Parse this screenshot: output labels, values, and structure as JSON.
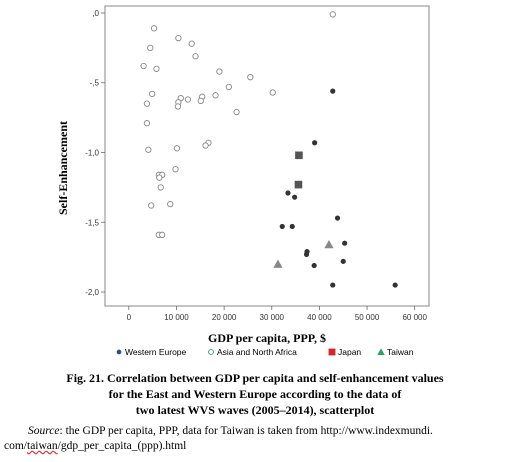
{
  "chart_data": {
    "type": "scatter",
    "xlabel": "GDP per capita, PPP, $",
    "ylabel": "Self-Enhancement",
    "xlim": [
      -5000,
      63000
    ],
    "ylim": [
      -2.1,
      0.05
    ],
    "x_ticks": [
      0,
      10000,
      20000,
      30000,
      40000,
      50000,
      60000
    ],
    "x_tick_labels": [
      "0",
      "10 000",
      "20 000",
      "30 000",
      "40 000",
      "50 000",
      "60 000"
    ],
    "y_ticks": [
      0,
      -0.5,
      -1,
      -1.5,
      -2
    ],
    "y_tick_labels": [
      ",0",
      "-,5",
      "-1,0",
      "-1,5",
      "-2,0"
    ],
    "grid": false,
    "legend_position": "bottom",
    "series": [
      {
        "name": "Western Europe",
        "marker": "circle-filled",
        "color": "#333333",
        "points": [
          [
            42800,
            -0.56
          ],
          [
            39000,
            -0.93
          ],
          [
            33400,
            -1.29
          ],
          [
            34800,
            -1.32
          ],
          [
            32200,
            -1.53
          ],
          [
            34300,
            -1.53
          ],
          [
            37400,
            -1.71
          ],
          [
            37300,
            -1.73
          ],
          [
            38900,
            -1.81
          ],
          [
            43800,
            -1.47
          ],
          [
            45300,
            -1.65
          ],
          [
            45000,
            -1.78
          ],
          [
            42800,
            -1.95
          ],
          [
            55900,
            -1.95
          ]
        ]
      },
      {
        "name": "Asia and North Africa",
        "marker": "circle-open",
        "color": "#888888",
        "points": [
          [
            42800,
            -0.01
          ],
          [
            5300,
            -0.11
          ],
          [
            10400,
            -0.18
          ],
          [
            13200,
            -0.22
          ],
          [
            4500,
            -0.25
          ],
          [
            14000,
            -0.31
          ],
          [
            3100,
            -0.38
          ],
          [
            5800,
            -0.4
          ],
          [
            19000,
            -0.42
          ],
          [
            25500,
            -0.46
          ],
          [
            21000,
            -0.53
          ],
          [
            18200,
            -0.59
          ],
          [
            30200,
            -0.57
          ],
          [
            4900,
            -0.58
          ],
          [
            15400,
            -0.6
          ],
          [
            12400,
            -0.62
          ],
          [
            10900,
            -0.61
          ],
          [
            15100,
            -0.63
          ],
          [
            10400,
            -0.64
          ],
          [
            3800,
            -0.65
          ],
          [
            10300,
            -0.67
          ],
          [
            22600,
            -0.71
          ],
          [
            3800,
            -0.79
          ],
          [
            16700,
            -0.93
          ],
          [
            16100,
            -0.95
          ],
          [
            4100,
            -0.98
          ],
          [
            10100,
            -0.97
          ],
          [
            9800,
            -1.12
          ],
          [
            6300,
            -1.16
          ],
          [
            7000,
            -1.16
          ],
          [
            6400,
            -1.18
          ],
          [
            6700,
            -1.25
          ],
          [
            8700,
            -1.37
          ],
          [
            4700,
            -1.38
          ],
          [
            6300,
            -1.59
          ],
          [
            7000,
            -1.59
          ]
        ]
      },
      {
        "name": "Japan",
        "marker": "square-filled",
        "color": "#555555",
        "points": [
          [
            35700,
            -1.02
          ],
          [
            35600,
            -1.23
          ]
        ]
      },
      {
        "name": "Taiwan",
        "marker": "triangle-filled",
        "color": "#888888",
        "points": [
          [
            31300,
            -1.8
          ],
          [
            42000,
            -1.66
          ]
        ]
      }
    ],
    "legend": [
      {
        "label": "Western Europe",
        "marker": "circle-filled",
        "color": "#2b4f84"
      },
      {
        "label": "Asia and North Africa",
        "marker": "circle-open",
        "color": "#2aa05a"
      },
      {
        "label": "Japan",
        "marker": "square-filled",
        "color": "#d62728"
      },
      {
        "label": "Taiwan",
        "marker": "triangle-filled",
        "color": "#2aa05a"
      }
    ]
  },
  "caption": {
    "line1": "Fig. 21. Correlation between GDP per capita and self-enhancement values",
    "line2": "for the East and Western Europe according to the data of",
    "line3": "two latest WVS waves (2005–2014), scatterplot"
  },
  "source": {
    "label": "Source",
    "text_before": ": the GDP per capita, PPP, data for Taiwan is taken from http://www.indexmundi.",
    "link_start": "com/",
    "link_underlined": "taiwan",
    "link_end": "/gdp_per_capita_(ppp).html"
  }
}
